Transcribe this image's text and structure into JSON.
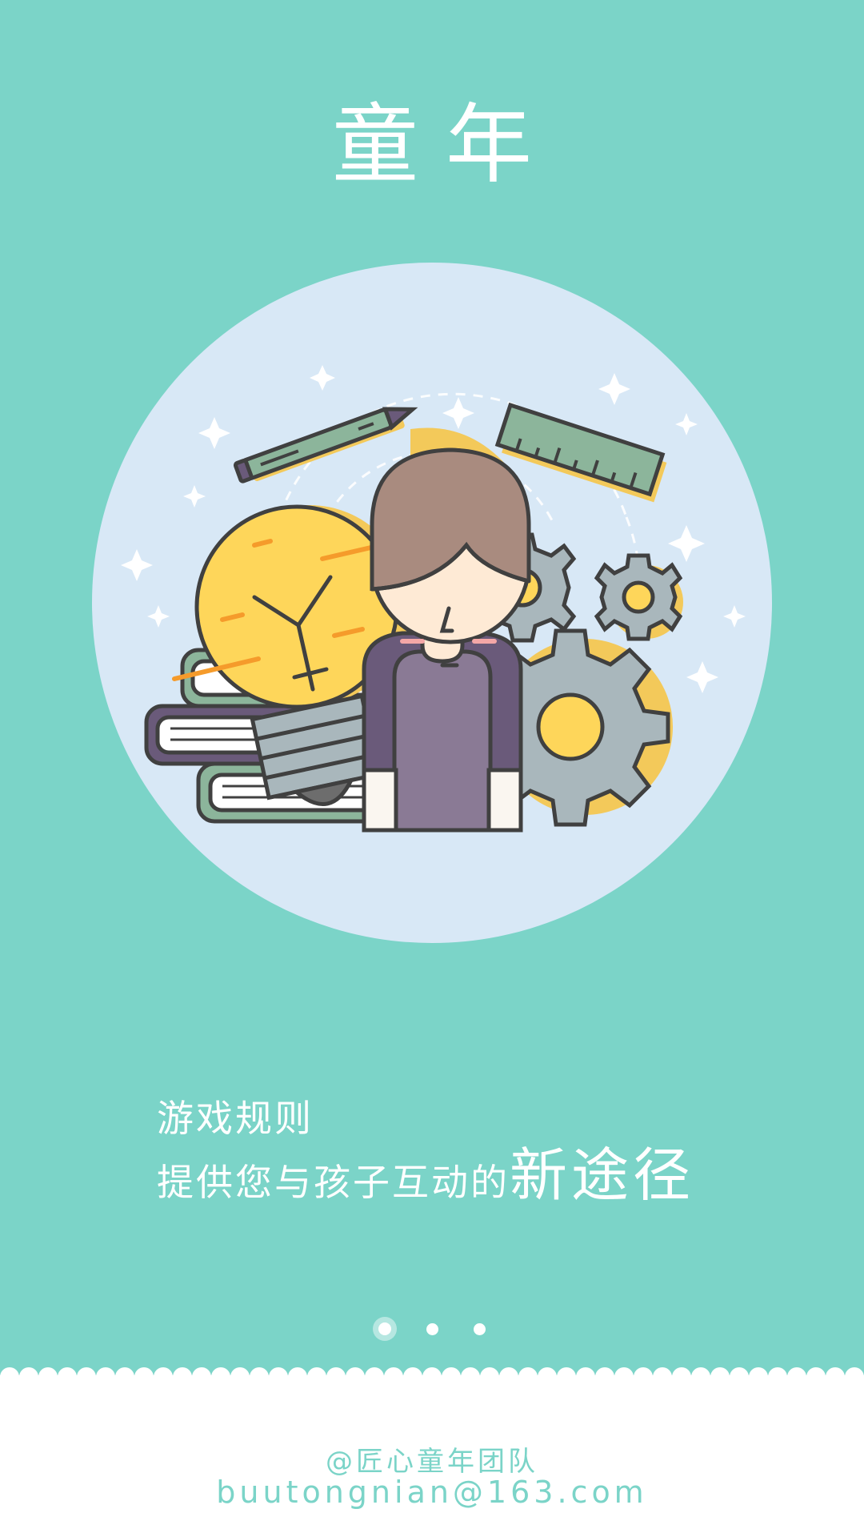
{
  "app": {
    "title": "童年"
  },
  "tagline": {
    "line1": "游戏规则",
    "line2_prefix": "提供您与孩子互动的",
    "line2_emphasis": "新途径"
  },
  "pager": {
    "count": 3,
    "active_index": 0
  },
  "footer": {
    "team": "@匠心童年团队",
    "email": "buutongnian@163.com"
  },
  "colors": {
    "background": "#7bd4c8",
    "circle": "#d8e8f6",
    "footer": "#ffffff",
    "accent_text": "#7bd4c8"
  },
  "illustration": {
    "icons": [
      "pencil-icon",
      "ruler-icon",
      "lightbulb-icon",
      "books-icon",
      "gear-icon",
      "child-icon",
      "sparkle-icon"
    ]
  }
}
